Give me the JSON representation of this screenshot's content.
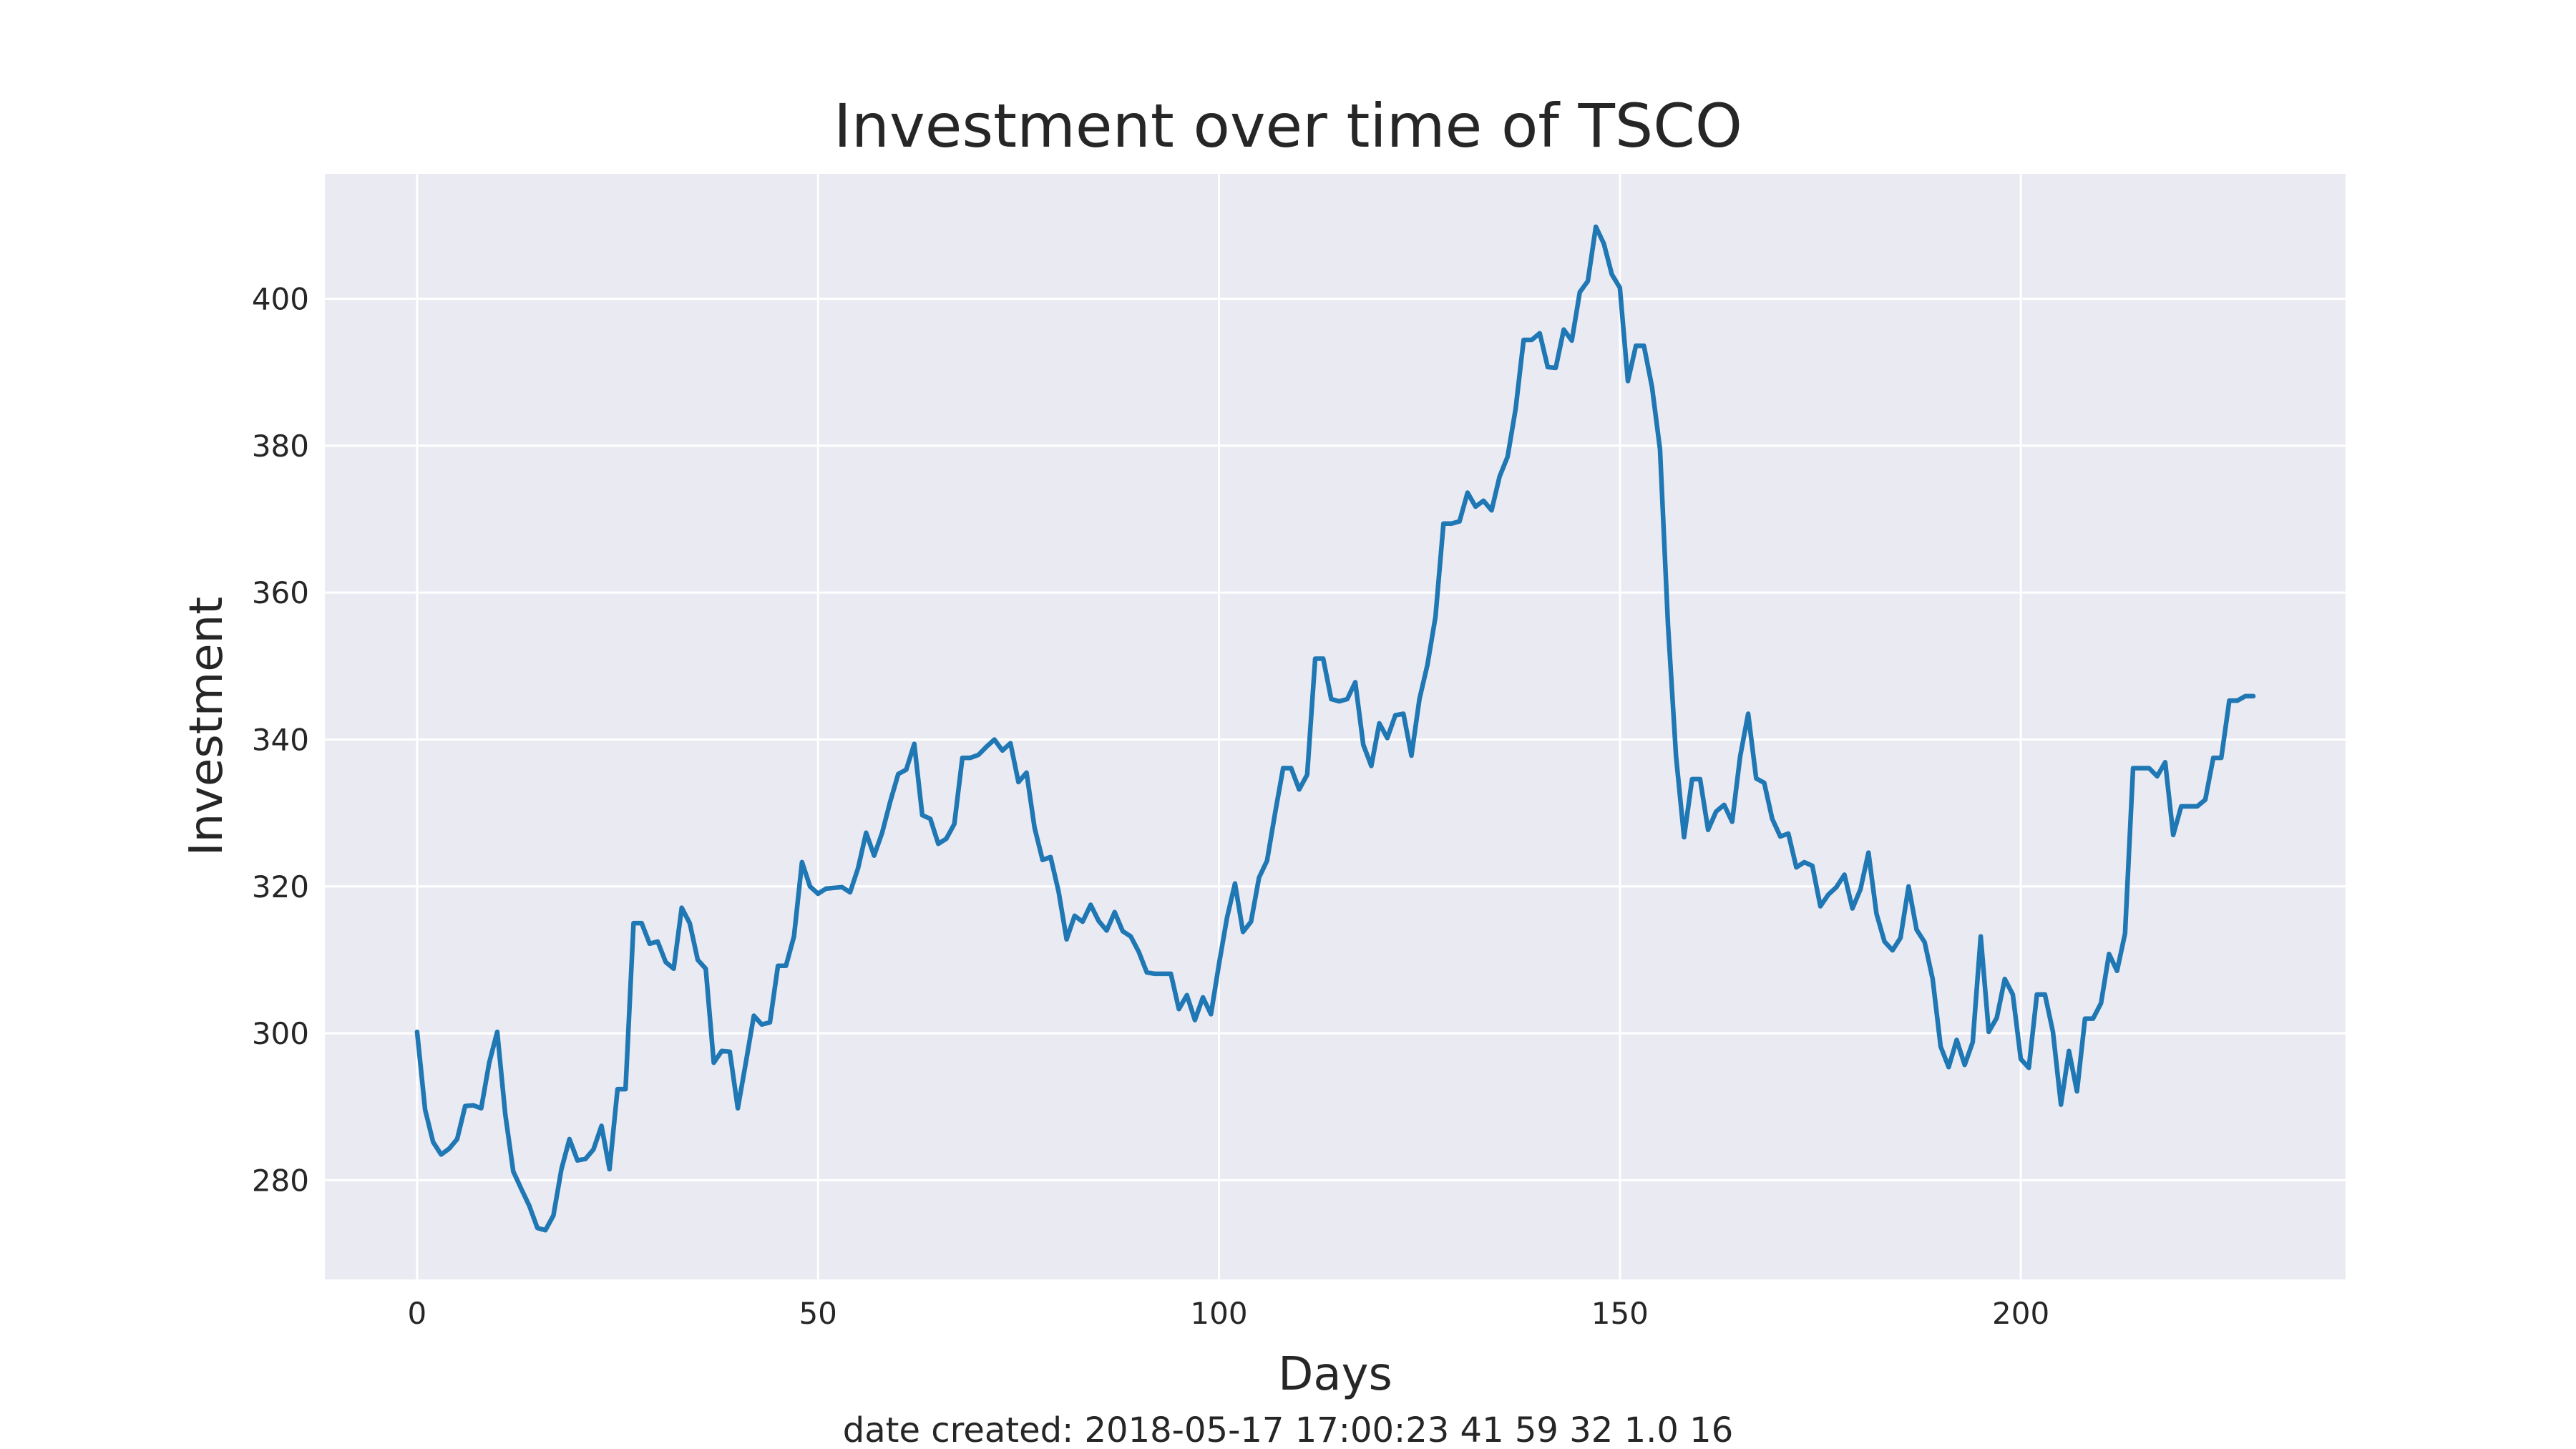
{
  "chart_data": {
    "type": "line",
    "title": "Investment over time of TSCO",
    "xlabel": "Days",
    "ylabel": "Investment",
    "footer": "date created: 2018-05-17 17:00:23 41 59 32 1.0 16",
    "xlim": [
      -11.5,
      240.5
    ],
    "ylim": [
      266.5,
      417
    ],
    "xticks": [
      0,
      50,
      100,
      150,
      200
    ],
    "yticks": [
      280,
      300,
      320,
      340,
      360,
      380,
      400
    ],
    "grid": true,
    "colors": {
      "line": "#1f77b4",
      "plot_bg": "#eaeaf2",
      "grid": "#ffffff"
    },
    "series": [
      {
        "values": [
          300.2,
          289.6,
          285.2,
          283.5,
          284.3,
          285.6,
          290.1,
          290.2,
          289.8,
          296,
          300.2,
          289,
          281.2,
          278.8,
          276.5,
          273.5,
          273.2,
          275.2,
          281.5,
          285.6,
          282.7,
          282.9,
          284.2,
          287.4,
          281.5,
          292.4,
          292.4,
          315,
          315,
          312.2,
          312.5,
          309.7,
          308.8,
          317.1,
          315,
          310,
          308.8,
          296,
          297.6,
          297.5,
          289.8,
          296,
          302.4,
          301.2,
          301.5,
          309.2,
          309.2,
          313.2,
          323.3,
          320,
          319,
          319.7,
          319.8,
          319.9,
          319.2,
          322.5,
          327.3,
          324.2,
          327.3,
          331.5,
          335.3,
          335.9,
          339.4,
          329.7,
          329.2,
          325.8,
          326.5,
          328.5,
          337.5,
          337.5,
          337.9,
          339,
          340,
          338.5,
          339.5,
          334.2,
          335.5,
          328,
          323.6,
          324,
          319.3,
          312.8,
          316,
          315.2,
          317.5,
          315.3,
          314,
          316.5,
          313.9,
          313.2,
          311.1,
          308.3,
          308.1,
          308.1,
          308.1,
          303.3,
          305.2,
          301.8,
          304.9,
          302.6,
          309.4,
          315.7,
          320.4,
          313.8,
          315.2,
          321.2,
          323.5,
          330,
          336.1,
          336.1,
          333.2,
          335.2,
          351,
          351,
          345.5,
          345.2,
          345.5,
          347.8,
          339.3,
          336.4,
          342.2,
          340.2,
          343.3,
          343.5,
          337.8,
          345.5,
          350.2,
          356.7,
          369.4,
          369.4,
          369.7,
          373.6,
          371.7,
          372.5,
          371.2,
          375.8,
          378.5,
          385,
          394.4,
          394.4,
          395.3,
          390.7,
          390.6,
          395.8,
          394.3,
          400.9,
          402.4,
          409.8,
          407.5,
          403.3,
          401.5,
          388.8,
          393.6,
          393.6,
          388,
          379.5,
          355.5,
          337.7,
          326.7,
          334.6,
          334.6,
          327.7,
          330.2,
          331.1,
          328.8,
          337.7,
          343.5,
          334.7,
          334.1,
          329.2,
          326.8,
          327.2,
          322.6,
          323.3,
          322.8,
          317.3,
          318.9,
          319.9,
          321.6,
          317,
          319.6,
          324.6,
          316.3,
          312.5,
          311.3,
          313,
          320,
          314.1,
          312.4,
          307.4,
          298.2,
          295.4,
          299.1,
          295.7,
          298.8,
          313.2,
          300.2,
          302.1,
          307.4,
          305.3,
          296.5,
          295.3,
          305.3,
          305.3,
          300.2,
          290.3,
          297.6,
          292.1,
          302,
          302,
          304.1,
          310.8,
          308.5,
          313.6,
          336.1,
          336.1,
          336.1,
          335,
          336.9,
          327,
          330.9,
          330.9,
          330.9,
          331.8,
          337.5,
          337.5,
          345.3,
          345.3,
          345.9,
          345.9
        ]
      }
    ]
  }
}
